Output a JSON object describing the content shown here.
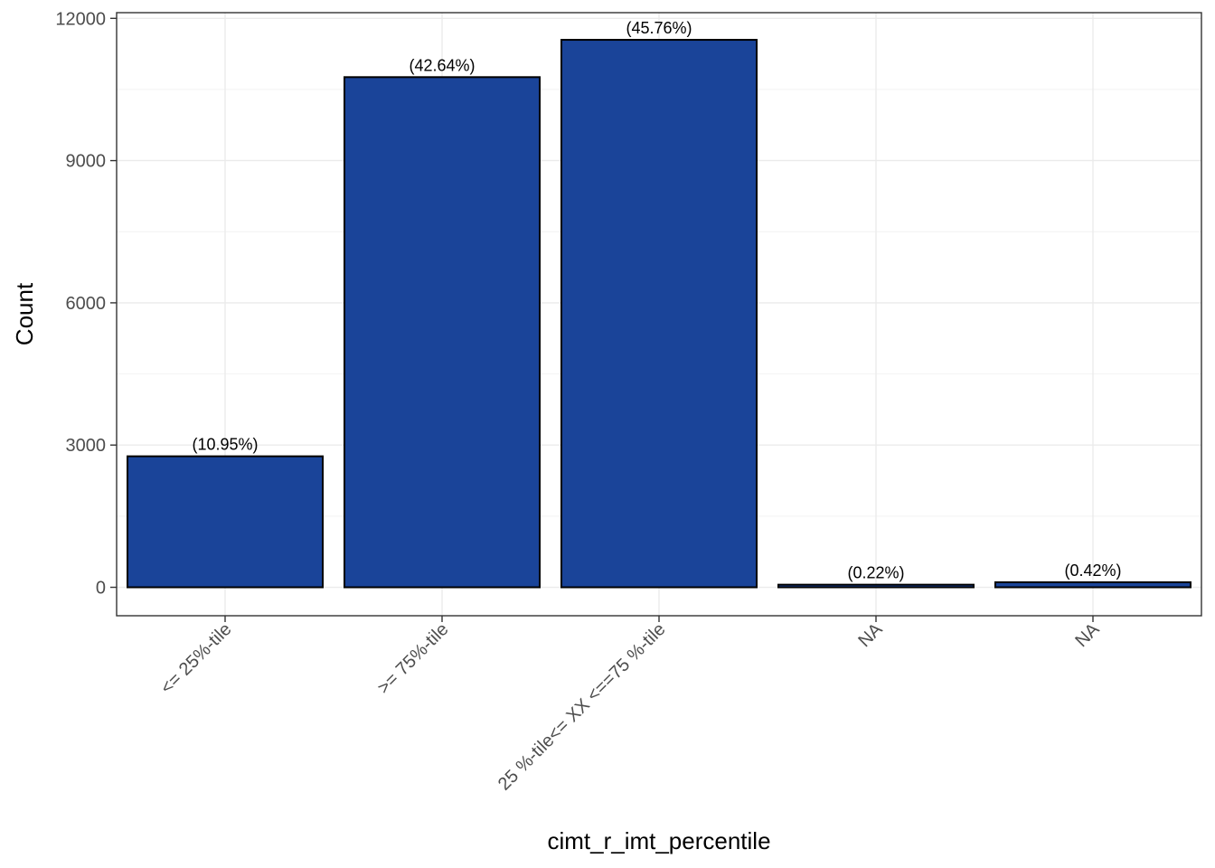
{
  "chart_data": {
    "type": "bar",
    "categories": [
      "<= 25%-tile",
      ">= 75%-tile",
      "25 %-tile<= XX <==75 %-tile",
      "NA",
      "NA"
    ],
    "values": [
      2763,
      10760,
      11547,
      55,
      106
    ],
    "data_labels": [
      "(10.95%)",
      "(42.64%)",
      "(45.76%)",
      "(0.22%)",
      "(0.42%)"
    ],
    "title": "",
    "xlabel": "cimt_r_imt_percentile",
    "ylabel": "Count",
    "ylim": [
      -600,
      12120
    ],
    "yticks": [
      0,
      3000,
      6000,
      9000,
      12000
    ],
    "ytick_labels": [
      "0",
      "3000",
      "6000",
      "9000",
      "12000"
    ],
    "grid": true,
    "bar_color": "#1a4499",
    "bar_outline": "#000000"
  }
}
